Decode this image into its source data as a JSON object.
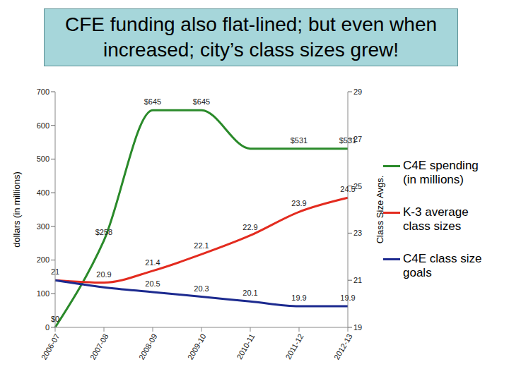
{
  "chart_data": {
    "type": "line",
    "title": "CFE funding also flat-lined; but even when increased; city’s class sizes grew!",
    "y_label": "dollars (in millions)",
    "y2_label": "Class Size Avgs.",
    "categories": [
      "2006-07",
      "2007-08",
      "2008-09",
      "2009-10",
      "2010-11",
      "2011-12",
      "2012-13"
    ],
    "series": [
      {
        "name": "C4E spending (in millions)",
        "color": "#2a8a2a",
        "values": [
          0,
          258,
          645,
          645,
          531,
          531,
          531
        ],
        "value_labels": [
          "$0",
          "$258",
          "$645",
          "$645",
          null,
          "$531",
          "$531"
        ]
      },
      {
        "name": "K-3 average class sizes",
        "color": "#e32b1f",
        "axis": "y2",
        "values": [
          21,
          20.9,
          21.4,
          22.1,
          22.9,
          23.9,
          24.5
        ],
        "value_labels": [
          "21",
          "20.9",
          "21.4",
          "22.1",
          "22.9",
          "23.9",
          "24.5"
        ]
      },
      {
        "name": "C4E class size goals",
        "color": "#1c2a8f",
        "axis": "y2",
        "values": [
          21,
          20.7,
          20.5,
          20.3,
          20.1,
          19.9,
          19.9
        ],
        "value_labels": [
          null,
          null,
          "20.5",
          "20.3",
          "20.1",
          "19.9",
          "19.9"
        ]
      }
    ],
    "ylim": [
      0,
      700
    ],
    "yticks": [
      0,
      100,
      200,
      300,
      400,
      500,
      600,
      700
    ],
    "y2lim": [
      19,
      29
    ],
    "y2ticks": [
      19,
      21,
      23,
      25,
      27,
      29
    ],
    "legend": "right",
    "grid": false,
    "data_labels": true
  }
}
